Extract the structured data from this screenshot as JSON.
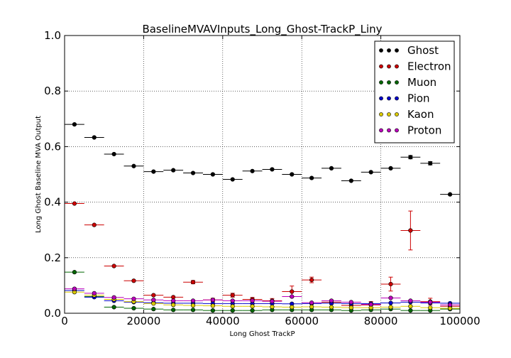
{
  "chart_data": {
    "type": "scatter",
    "title": "BaselineMVAVInputs_Long_Ghost-TrackP_Liny",
    "xlabel": "Long Ghost TrackP",
    "ylabel": "Long Ghost Baseline MVA Output",
    "xlim": [
      0,
      100000
    ],
    "ylim": [
      0,
      1.0
    ],
    "xticks": [
      0,
      20000,
      40000,
      60000,
      80000,
      100000
    ],
    "yticks": [
      0.0,
      0.2,
      0.4,
      0.6,
      0.8,
      1.0
    ],
    "xtick_labels": [
      "0",
      "20000",
      "40000",
      "60000",
      "80000",
      "100000"
    ],
    "ytick_labels": [
      "0.0",
      "0.2",
      "0.4",
      "0.6",
      "0.8",
      "1.0"
    ],
    "grid": true,
    "legend_position": "top-right",
    "bin_half_width": 2500,
    "x": [
      2500,
      7500,
      12500,
      17500,
      22500,
      27500,
      32500,
      37500,
      42500,
      47500,
      52500,
      57500,
      62500,
      67500,
      72500,
      77500,
      82500,
      87500,
      92500,
      97500
    ],
    "series": [
      {
        "name": "Ghost",
        "color": "#000000",
        "values": [
          0.68,
          0.633,
          0.573,
          0.53,
          0.51,
          0.515,
          0.505,
          0.5,
          0.482,
          0.512,
          0.518,
          0.5,
          0.487,
          0.522,
          0.477,
          0.508,
          0.522,
          0.562,
          0.54,
          0.428
        ],
        "errors": [
          0.003,
          0.003,
          0.003,
          0.003,
          0.003,
          0.003,
          0.003,
          0.004,
          0.004,
          0.004,
          0.004,
          0.004,
          0.004,
          0.005,
          0.005,
          0.005,
          0.005,
          0.006,
          0.006,
          0.005
        ]
      },
      {
        "name": "Electron",
        "color": "#cc0000",
        "values": [
          0.395,
          0.318,
          0.17,
          0.117,
          0.065,
          0.058,
          0.112,
          0.048,
          0.065,
          0.05,
          0.045,
          0.078,
          0.12,
          0.04,
          0.028,
          0.03,
          0.105,
          0.298,
          0.042,
          0.025
        ],
        "errors": [
          0.003,
          0.004,
          0.004,
          0.004,
          0.005,
          0.005,
          0.006,
          0.006,
          0.007,
          0.007,
          0.008,
          0.02,
          0.01,
          0.008,
          0.01,
          0.012,
          0.025,
          0.07,
          0.012,
          0.01
        ]
      },
      {
        "name": "Muon",
        "color": "#006600",
        "values": [
          0.148,
          0.06,
          0.022,
          0.018,
          0.015,
          0.012,
          0.012,
          0.01,
          0.01,
          0.01,
          0.012,
          0.012,
          0.012,
          0.012,
          0.01,
          0.012,
          0.015,
          0.01,
          0.01,
          0.015
        ],
        "errors": [
          0.002,
          0.002,
          0.002,
          0.002,
          0.002,
          0.002,
          0.002,
          0.002,
          0.002,
          0.002,
          0.002,
          0.002,
          0.002,
          0.002,
          0.002,
          0.002,
          0.003,
          0.003,
          0.003,
          0.003
        ]
      },
      {
        "name": "Pion",
        "color": "#0000cc",
        "values": [
          0.082,
          0.058,
          0.045,
          0.04,
          0.038,
          0.036,
          0.036,
          0.035,
          0.035,
          0.035,
          0.035,
          0.034,
          0.035,
          0.036,
          0.035,
          0.035,
          0.037,
          0.04,
          0.037,
          0.036
        ],
        "errors": [
          0.001,
          0.001,
          0.001,
          0.001,
          0.001,
          0.001,
          0.001,
          0.001,
          0.001,
          0.001,
          0.001,
          0.001,
          0.001,
          0.001,
          0.001,
          0.001,
          0.001,
          0.002,
          0.002,
          0.002
        ]
      },
      {
        "name": "Kaon",
        "color": "#ddcc00",
        "values": [
          0.076,
          0.065,
          0.05,
          0.042,
          0.035,
          0.03,
          0.028,
          0.027,
          0.025,
          0.025,
          0.023,
          0.022,
          0.023,
          0.022,
          0.02,
          0.02,
          0.022,
          0.025,
          0.02,
          0.018
        ],
        "errors": [
          0.001,
          0.001,
          0.001,
          0.001,
          0.001,
          0.001,
          0.001,
          0.001,
          0.001,
          0.001,
          0.001,
          0.001,
          0.001,
          0.001,
          0.001,
          0.001,
          0.002,
          0.002,
          0.002,
          0.002
        ]
      },
      {
        "name": "Proton",
        "color": "#bb00bb",
        "values": [
          0.088,
          0.072,
          0.057,
          0.052,
          0.048,
          0.045,
          0.045,
          0.048,
          0.045,
          0.045,
          0.043,
          0.06,
          0.038,
          0.045,
          0.04,
          0.032,
          0.055,
          0.045,
          0.04,
          0.03
        ],
        "errors": [
          0.001,
          0.001,
          0.001,
          0.001,
          0.002,
          0.002,
          0.002,
          0.002,
          0.002,
          0.002,
          0.003,
          0.003,
          0.003,
          0.003,
          0.003,
          0.004,
          0.004,
          0.005,
          0.005,
          0.005
        ]
      }
    ]
  }
}
